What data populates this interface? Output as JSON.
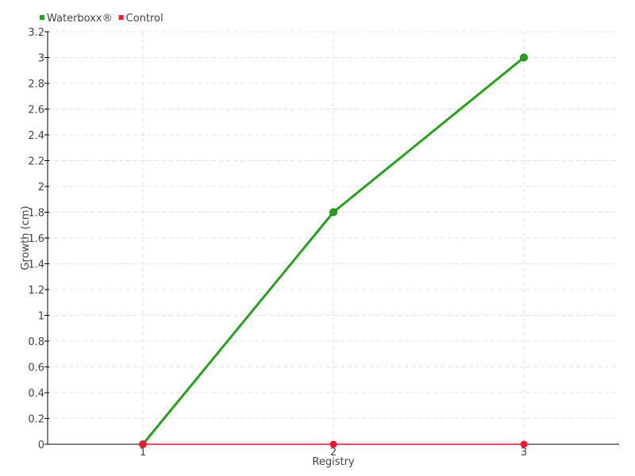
{
  "chart_data": {
    "type": "line",
    "categories": [
      "1",
      "2",
      "3"
    ],
    "xlabel": "Registry",
    "ylabel": "Growth (cm)",
    "ylim": [
      0,
      3.2
    ],
    "yticks": [
      "0",
      "0.2",
      "0.4",
      "0.6",
      "0.8",
      "1",
      "1.2",
      "1.4",
      "1.6",
      "1.8",
      "2",
      "2.2",
      "2.4",
      "2.6",
      "2.8",
      "3",
      "3.2"
    ],
    "grid": true,
    "legend_position": "top-left",
    "series": [
      {
        "name": "Waterboxx®",
        "values": [
          0,
          1.8,
          3.0
        ],
        "color": "#22a31a"
      },
      {
        "name": "Control",
        "values": [
          0,
          0,
          0
        ],
        "color": "#ff1030"
      }
    ]
  }
}
